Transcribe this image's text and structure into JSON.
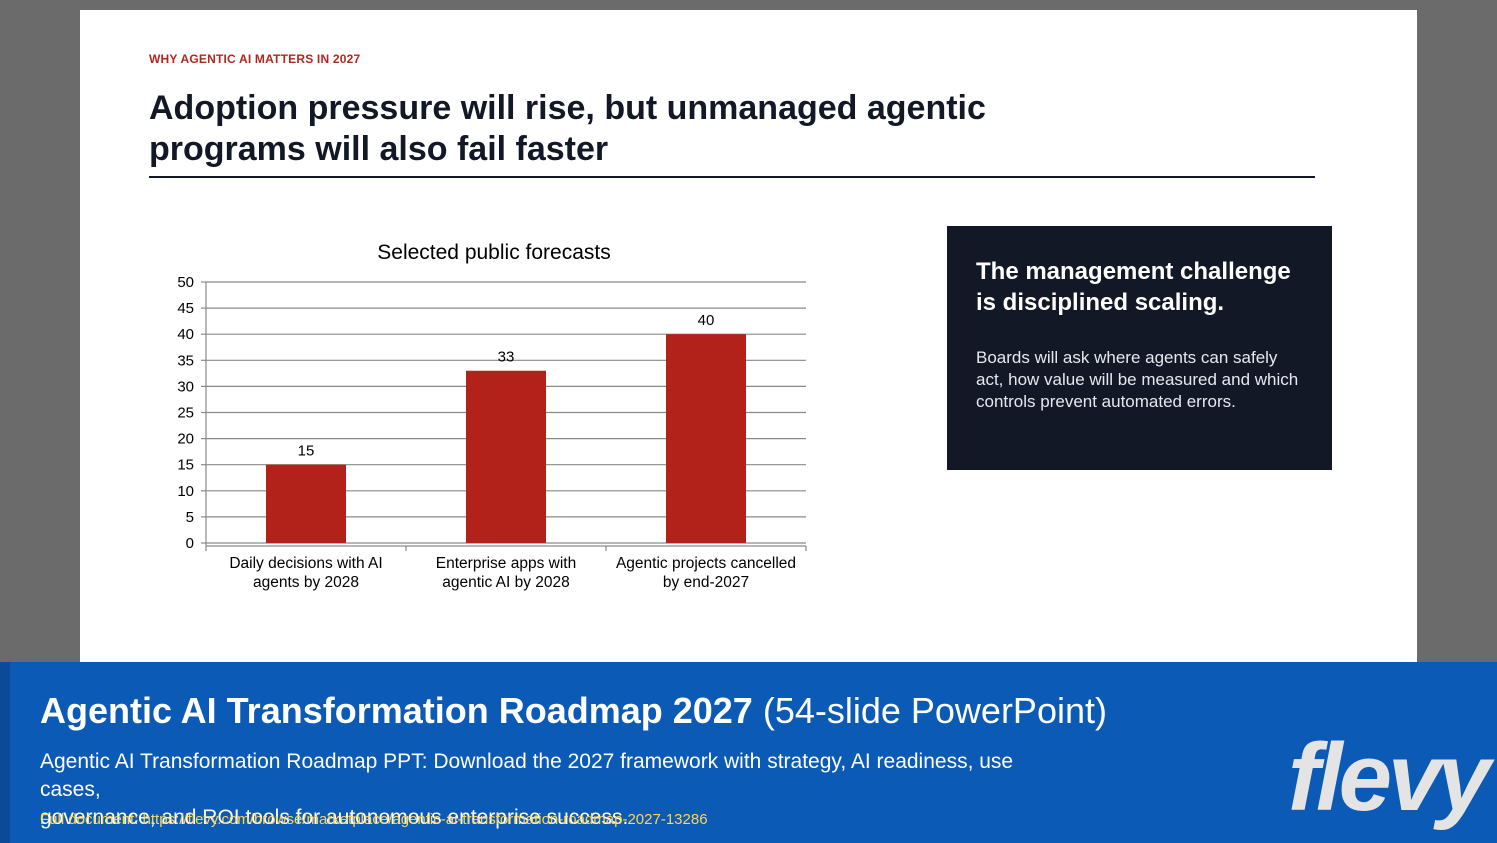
{
  "slide": {
    "eyebrow": "WHY AGENTIC AI MATTERS IN 2027",
    "headline_line1": "Adoption pressure will rise, but unmanaged agentic",
    "headline_line2": "programs will also fail faster"
  },
  "callout": {
    "title": "The management challenge is disciplined scaling.",
    "body": "Boards will ask where agents can safely act, how value will be measured and which controls prevent automated errors."
  },
  "banner": {
    "title_bold": "Agentic AI Transformation Roadmap 2027",
    "title_light": " (54-slide PowerPoint)",
    "desc_line1": "Agentic AI Transformation Roadmap PPT: Download the 2027 framework with strategy, AI readiness, use cases,",
    "desc_line2": "governance, and ROI tools for autonomous enterprise success.",
    "link": "Full document: https://flevy.com/browse/marketplace/agentic-ai-transformation-roadmap-2027-13286",
    "logo": "flevy"
  },
  "colors": {
    "bar": "#b3221a",
    "accent": "#b3261e",
    "dark": "#121826",
    "banner": "#0b5bb6",
    "link": "#ffd451"
  },
  "chart_data": {
    "type": "bar",
    "title": "Selected public forecasts",
    "categories": [
      [
        "Daily decisions with AI",
        "agents by 2028"
      ],
      [
        "Enterprise apps with",
        "agentic AI by 2028"
      ],
      [
        "Agentic projects cancelled",
        "by end-2027"
      ]
    ],
    "values": [
      15,
      33,
      40
    ],
    "data_labels": [
      "15",
      "33",
      "40"
    ],
    "ylim": [
      0,
      50
    ],
    "yticks": [
      0,
      5,
      10,
      15,
      20,
      25,
      30,
      35,
      40,
      45,
      50
    ],
    "grid": true,
    "legend": "none"
  }
}
